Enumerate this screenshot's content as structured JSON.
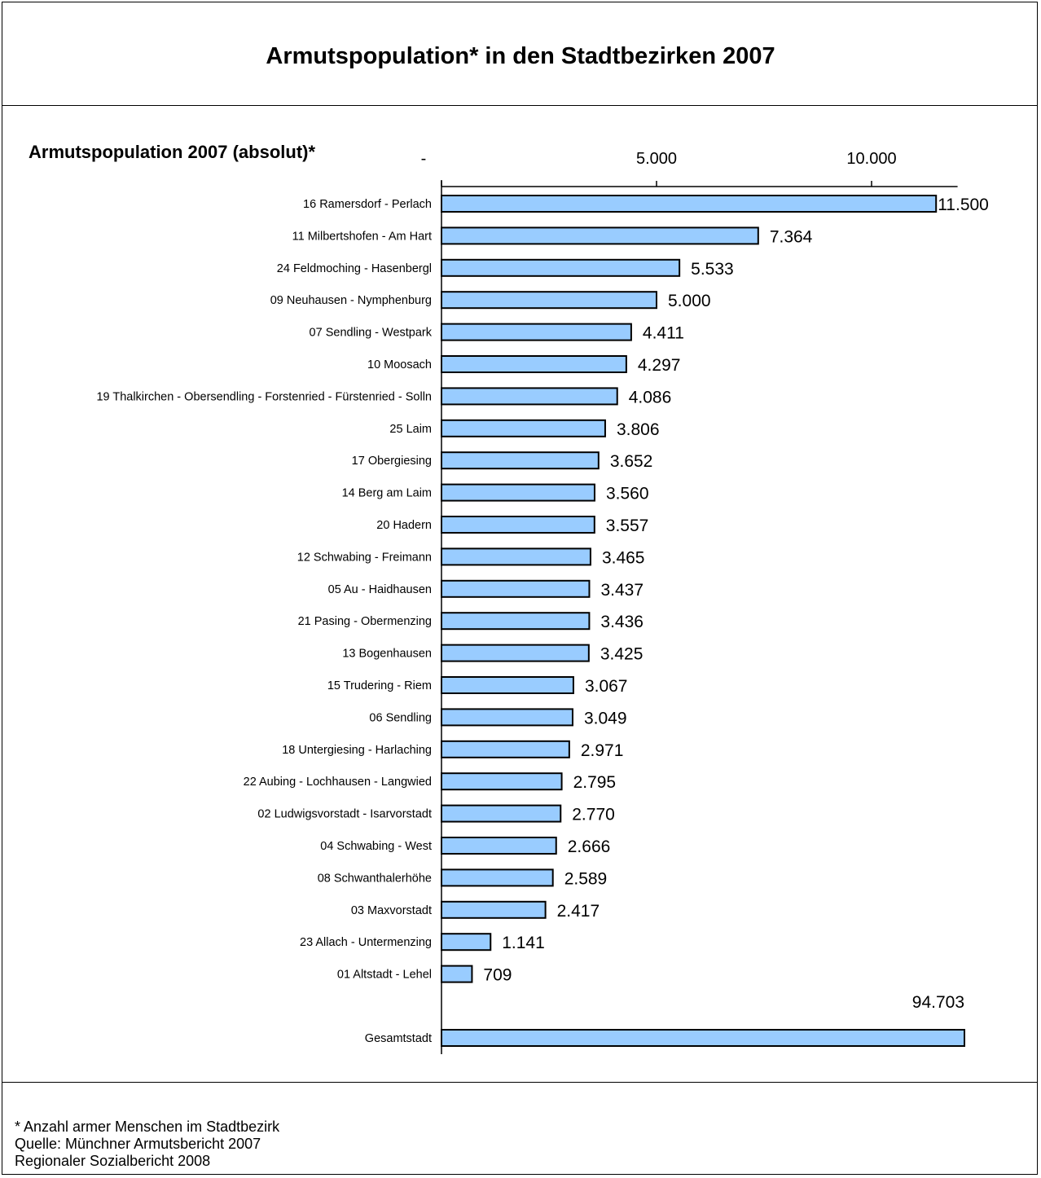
{
  "title": "Armutspopulation* in den Stadtbezirken 2007",
  "footer": {
    "line1": "* Anzahl armer Menschen im Stadtbezirk",
    "line2": "Quelle: Münchner Armutsbericht 2007",
    "line3": "Regionaler Sozialbericht 2008"
  },
  "chart_data": {
    "type": "bar",
    "orientation": "horizontal",
    "title": "Armutspopulation 2007 (absolut)*",
    "xlim": [
      0,
      12000
    ],
    "x_ticks": [
      {
        "value": 0,
        "label": "-"
      },
      {
        "value": 5000,
        "label": "5.000"
      },
      {
        "value": 10000,
        "label": "10.000"
      }
    ],
    "bar_color": "#99ccff",
    "categories": [
      "16 Ramersdorf - Perlach",
      "11 Milbertshofen -  Am Hart",
      "24 Feldmoching - Hasenbergl",
      "09 Neuhausen - Nymphenburg",
      "07 Sendling - Westpark",
      "10 Moosach",
      "19 Thalkirchen - Obersendling - Forstenried - Fürstenried - Solln",
      "25 Laim",
      "17 Obergiesing",
      "14 Berg am Laim",
      "20 Hadern",
      "12 Schwabing -  Freimann",
      "05 Au - Haidhausen",
      "21 Pasing - Obermenzing",
      "13 Bogenhausen",
      "15 Trudering - Riem",
      "06 Sendling",
      "18 Untergiesing - Harlaching",
      "22 Aubing - Lochhausen - Langwied",
      "02 Ludwigsvorstadt - Isarvorstadt",
      "04 Schwabing - West",
      "08 Schwanthalerhöhe",
      "03 Maxvorstadt",
      "23 Allach - Untermenzing",
      "01 Altstadt - Lehel"
    ],
    "values": [
      11500,
      7364,
      5533,
      5000,
      4411,
      4297,
      4086,
      3806,
      3652,
      3560,
      3557,
      3465,
      3437,
      3436,
      3425,
      3067,
      3049,
      2971,
      2795,
      2770,
      2666,
      2589,
      2417,
      1141,
      709
    ],
    "value_labels": [
      "11.500",
      "7.364",
      "5.533",
      "5.000",
      "4.411",
      "4.297",
      "4.086",
      "3.806",
      "3.652",
      "3.560",
      "3.557",
      "3.465",
      "3.437",
      "3.436",
      "3.425",
      "3.067",
      "3.049",
      "2.971",
      "2.795",
      "2.770",
      "2.666",
      "2.589",
      "2.417",
      "1.141",
      "709"
    ],
    "total": {
      "category": "Gesamtstadt",
      "value": 94703,
      "value_label": "94.703"
    }
  }
}
